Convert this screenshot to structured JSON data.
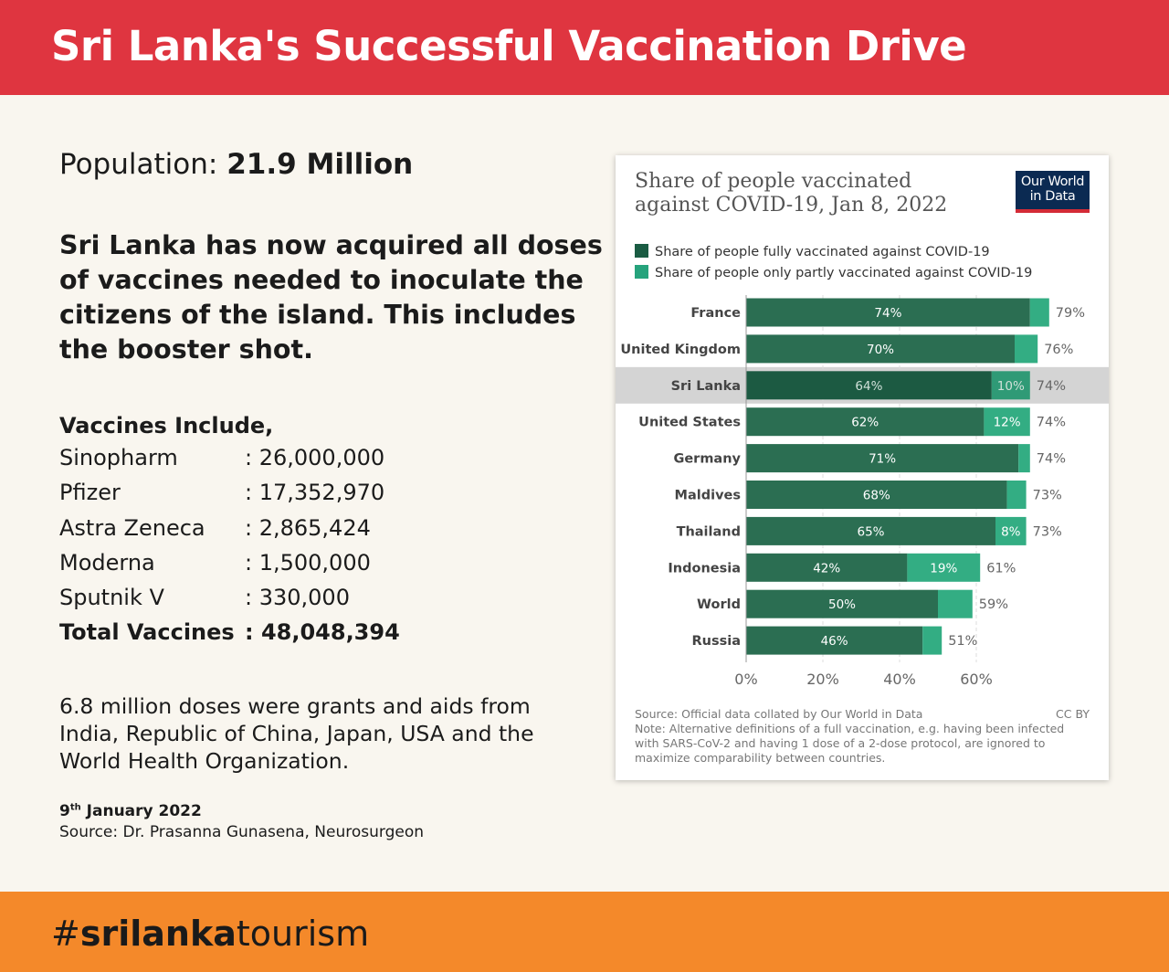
{
  "header": {
    "title": "Sri Lanka's Successful Vaccination Drive"
  },
  "population": {
    "label": "Population:",
    "value": "21.9 Million"
  },
  "headline": "Sri Lanka has now acquired all doses of vaccines needed to inoculate the citizens of the island. This includes the booster shot.",
  "vaccines": {
    "heading": "Vaccines Include,",
    "items": [
      {
        "name": "Sinopharm",
        "amount": ": 26,000,000"
      },
      {
        "name": "Pfizer",
        "amount": ": 17,352,970"
      },
      {
        "name": "Astra Zeneca",
        "amount": ": 2,865,424"
      },
      {
        "name": "Moderna",
        "amount": ": 1,500,000"
      },
      {
        "name": "Sputnik V",
        "amount": ": 330,000"
      }
    ],
    "total": {
      "name": "Total Vaccines",
      "amount": ": 48,048,394"
    }
  },
  "grants": "6.8 million doses were grants and aids from India, Republic of China, Japan, USA and the World Health Organization.",
  "date": {
    "day": "9",
    "suffix": "th",
    "rest": " January 2022"
  },
  "source": "Source: Dr. Prasanna Gunasena, Neurosurgeon",
  "footer": {
    "hashtag_prefix": "#",
    "hashtag_bold": "srilanka",
    "hashtag_rest": "tourism"
  },
  "colors": {
    "header": "#df3540",
    "footer": "#f4892a",
    "background": "#f9f6ef",
    "full_vaccinated": "#1a5c43",
    "partly_vaccinated": "#26a37c",
    "highlight_row": "#d4d4d4"
  },
  "chart_data": {
    "type": "bar",
    "orientation": "horizontal",
    "stacked": true,
    "title": "Share of people vaccinated against COVID-19, Jan 8, 2022",
    "logo": "Our World in Data",
    "categories": [
      "France",
      "United Kingdom",
      "Sri Lanka",
      "United States",
      "Germany",
      "Maldives",
      "Thailand",
      "Indonesia",
      "World",
      "Russia"
    ],
    "highlighted": "Sri Lanka",
    "series": [
      {
        "name": "Share of people fully vaccinated against COVID-19",
        "values": [
          74,
          70,
          64,
          62,
          71,
          68,
          65,
          42,
          50,
          46
        ]
      },
      {
        "name": "Share of people only partly vaccinated against COVID-19",
        "values": [
          5,
          6,
          10,
          12,
          3,
          5,
          8,
          19,
          9,
          5
        ]
      }
    ],
    "full_labels": [
      "74%",
      "70%",
      "64%",
      "62%",
      "71%",
      "68%",
      "65%",
      "42%",
      "50%",
      "46%"
    ],
    "partial_labels": [
      "",
      "",
      "10%",
      "12%",
      "",
      "",
      "8%",
      "19%",
      "",
      ""
    ],
    "total_labels": [
      "79%",
      "76%",
      "74%",
      "74%",
      "74%",
      "73%",
      "73%",
      "61%",
      "59%",
      "51%"
    ],
    "x_ticks": [
      0,
      20,
      40,
      60
    ],
    "x_tick_labels": [
      "0%",
      "20%",
      "40%",
      "60%"
    ],
    "xlim": [
      0,
      80
    ],
    "grid": true,
    "legend_position": "top",
    "source_note": "Source: Official data collated by Our World in Data",
    "license": "CC BY",
    "note": "Note: Alternative definitions of a full vaccination, e.g. having been infected with SARS-CoV-2 and having 1 dose of a 2-dose protocol, are ignored to maximize comparability between countries."
  }
}
